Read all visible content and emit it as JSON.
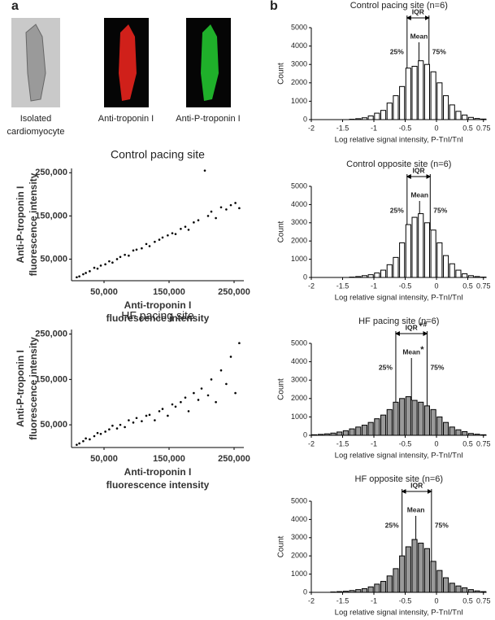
{
  "panel_labels": [
    "a",
    "b"
  ],
  "images": {
    "captions": [
      [
        "Isolated",
        "cardiomyocyte"
      ],
      [
        "Anti-troponin I"
      ],
      [
        "Anti-P-troponin I"
      ]
    ]
  },
  "chart_data": [
    {
      "type": "scatter",
      "title": "Control pacing site",
      "x_label": [
        "Anti-troponin I",
        "fluorescence intensity"
      ],
      "y_label": [
        "Anti-P-troponin I",
        "fluorescence intensity"
      ],
      "color": "#000000",
      "x": [
        8000,
        12000,
        18000,
        22000,
        28000,
        35000,
        40000,
        45000,
        52000,
        58000,
        63000,
        70000,
        75000,
        82000,
        88000,
        95000,
        100000,
        108000,
        115000,
        120000,
        128000,
        135000,
        140000,
        148000,
        155000,
        160000,
        168000,
        175000,
        180000,
        188000,
        195000,
        205000,
        210000,
        215000,
        222000,
        230000,
        238000,
        245000,
        252000,
        258000
      ],
      "values": [
        8000,
        10000,
        15000,
        18000,
        22000,
        30000,
        28000,
        35000,
        38000,
        45000,
        42000,
        50000,
        55000,
        60000,
        58000,
        70000,
        72000,
        75000,
        85000,
        80000,
        90000,
        95000,
        100000,
        105000,
        110000,
        108000,
        120000,
        125000,
        118000,
        135000,
        140000,
        255000,
        150000,
        160000,
        145000,
        170000,
        165000,
        175000,
        180000,
        168000
      ],
      "xlim": [
        0,
        265000
      ],
      "ylim": [
        0,
        260000
      ],
      "xticks": [
        {
          "value": 50000,
          "label": "50,000"
        },
        {
          "value": 150000,
          "label": "150,000"
        },
        {
          "value": 250000,
          "label": "250,000"
        }
      ],
      "yticks": [
        {
          "value": 50000,
          "label": "50,000"
        },
        {
          "value": 150000,
          "label": "150,000"
        },
        {
          "value": 250000,
          "label": "250,000"
        }
      ]
    },
    {
      "type": "scatter",
      "title": "HF pacing site",
      "x_label": [
        "Anti-troponin I",
        "fluorescence intensity"
      ],
      "y_label": [
        "Anti-P-troponin I",
        "fluorescence intensity"
      ],
      "color": "#000000",
      "x": [
        8000,
        12000,
        18000,
        22000,
        28000,
        35000,
        40000,
        45000,
        52000,
        58000,
        63000,
        70000,
        75000,
        82000,
        88000,
        95000,
        100000,
        108000,
        115000,
        120000,
        128000,
        135000,
        140000,
        148000,
        155000,
        160000,
        168000,
        175000,
        180000,
        188000,
        195000,
        200000,
        210000,
        215000,
        222000,
        230000,
        238000,
        245000,
        252000,
        258000
      ],
      "values": [
        6000,
        9000,
        14000,
        20000,
        18000,
        25000,
        32000,
        30000,
        35000,
        40000,
        48000,
        42000,
        50000,
        45000,
        60000,
        55000,
        65000,
        58000,
        70000,
        72000,
        60000,
        80000,
        85000,
        70000,
        95000,
        90000,
        100000,
        110000,
        80000,
        120000,
        105000,
        130000,
        115000,
        150000,
        100000,
        170000,
        140000,
        200000,
        120000,
        230000
      ],
      "xlim": [
        0,
        265000
      ],
      "ylim": [
        0,
        260000
      ],
      "xticks": [
        {
          "value": 50000,
          "label": "50,000"
        },
        {
          "value": 150000,
          "label": "150,000"
        },
        {
          "value": 250000,
          "label": "250,000"
        }
      ],
      "yticks": [
        {
          "value": 50000,
          "label": "50,000"
        },
        {
          "value": 150000,
          "label": "150,000"
        },
        {
          "value": 250000,
          "label": "250,000"
        }
      ]
    },
    {
      "type": "histogram",
      "title": "Control pacing site (n=6)",
      "x_label": "Log relative signal intensity, P-TnI/TnI",
      "y_label": "Count",
      "color": "#ffffff",
      "bins": [
        -2,
        -1.9,
        -1.8,
        -1.7,
        -1.6,
        -1.5,
        -1.4,
        -1.3,
        -1.2,
        -1.1,
        -1,
        -0.9,
        -0.8,
        -0.7,
        -0.6,
        -0.5,
        -0.4,
        -0.3,
        -0.2,
        -0.1,
        0,
        0.1,
        0.2,
        0.3,
        0.4,
        0.5,
        0.6,
        0.7,
        0.8
      ],
      "values": [
        0,
        0,
        0,
        0,
        0,
        0,
        20,
        50,
        100,
        200,
        350,
        500,
        900,
        1300,
        1800,
        2800,
        2900,
        3200,
        3000,
        2600,
        2000,
        1300,
        800,
        450,
        250,
        120,
        60,
        30
      ],
      "xlim": [
        -2,
        0.8
      ],
      "ylim": [
        0,
        5000
      ],
      "xticks": [
        -2,
        -1.5,
        -1,
        -0.5,
        0,
        0.5,
        0.75
      ],
      "yticks": [
        0,
        1000,
        2000,
        3000,
        4000,
        5000
      ],
      "iqr_label": "IQR",
      "markers": [
        {
          "label": "25%",
          "value": -0.47
        },
        {
          "label": "Mean",
          "value": -0.28
        },
        {
          "label": "75%",
          "value": -0.12
        }
      ]
    },
    {
      "type": "histogram",
      "title": "Control opposite site (n=6)",
      "x_label": "Log relative signal intensity, P-TnI/TnI",
      "y_label": "Count",
      "color": "#ffffff",
      "bins": [
        -2,
        -1.9,
        -1.8,
        -1.7,
        -1.6,
        -1.5,
        -1.4,
        -1.3,
        -1.2,
        -1.1,
        -1,
        -0.9,
        -0.8,
        -0.7,
        -0.6,
        -0.5,
        -0.4,
        -0.3,
        -0.2,
        -0.1,
        0,
        0.1,
        0.2,
        0.3,
        0.4,
        0.5,
        0.6,
        0.7,
        0.8
      ],
      "values": [
        0,
        0,
        0,
        0,
        0,
        0,
        20,
        50,
        100,
        150,
        250,
        400,
        700,
        1100,
        1900,
        2900,
        3300,
        3500,
        3000,
        2600,
        1900,
        1200,
        750,
        400,
        200,
        100,
        50,
        20
      ],
      "xlim": [
        -2,
        0.8
      ],
      "ylim": [
        0,
        5000
      ],
      "xticks": [
        -2,
        -1.5,
        -1,
        -0.5,
        0,
        0.5,
        0.75
      ],
      "yticks": [
        0,
        1000,
        2000,
        3000,
        4000,
        5000
      ],
      "iqr_label": "IQR",
      "markers": [
        {
          "label": "25%",
          "value": -0.47
        },
        {
          "label": "Mean",
          "value": -0.27
        },
        {
          "label": "75%",
          "value": -0.1
        }
      ]
    },
    {
      "type": "histogram",
      "title": "HF pacing site (n=6)",
      "x_label": "Log relative signal intensity, P-TnI/TnI",
      "y_label": "Count",
      "color": "#999999",
      "bins": [
        -2,
        -1.9,
        -1.8,
        -1.7,
        -1.6,
        -1.5,
        -1.4,
        -1.3,
        -1.2,
        -1.1,
        -1,
        -0.9,
        -0.8,
        -0.7,
        -0.6,
        -0.5,
        -0.4,
        -0.3,
        -0.2,
        -0.1,
        0,
        0.1,
        0.2,
        0.3,
        0.4,
        0.5,
        0.6,
        0.7,
        0.8
      ],
      "values": [
        30,
        50,
        80,
        120,
        180,
        250,
        350,
        450,
        550,
        700,
        900,
        1100,
        1400,
        1800,
        2000,
        2100,
        1900,
        1800,
        1600,
        1400,
        1000,
        700,
        450,
        300,
        200,
        100,
        60,
        30
      ],
      "xlim": [
        -2,
        0.8
      ],
      "ylim": [
        0,
        5000
      ],
      "xticks": [
        -2,
        -1.5,
        -1,
        -0.5,
        0,
        0.5,
        0.75
      ],
      "yticks": [
        0,
        1000,
        2000,
        3000,
        4000,
        5000
      ],
      "iqr_label": "IQR",
      "iqr_note": "+#",
      "mean_note": "*",
      "markers": [
        {
          "label": "25%",
          "value": -0.65
        },
        {
          "label": "Mean",
          "value": -0.4
        },
        {
          "label": "75%",
          "value": -0.15
        }
      ]
    },
    {
      "type": "histogram",
      "title": "HF opposite site (n=6)",
      "x_label": "Log relative signal intensity, P-TnI/TnI",
      "y_label": "Count",
      "color": "#999999",
      "bins": [
        -2,
        -1.9,
        -1.8,
        -1.7,
        -1.6,
        -1.5,
        -1.4,
        -1.3,
        -1.2,
        -1.1,
        -1,
        -0.9,
        -0.8,
        -0.7,
        -0.6,
        -0.5,
        -0.4,
        -0.3,
        -0.2,
        -0.1,
        0,
        0.1,
        0.2,
        0.3,
        0.4,
        0.5,
        0.6,
        0.7,
        0.8
      ],
      "values": [
        0,
        0,
        0,
        20,
        40,
        60,
        100,
        150,
        200,
        300,
        450,
        600,
        900,
        1300,
        2000,
        2500,
        2900,
        2700,
        2400,
        1700,
        1200,
        800,
        500,
        350,
        250,
        150,
        80,
        40
      ],
      "xlim": [
        -2,
        0.8
      ],
      "ylim": [
        0,
        5000
      ],
      "xticks": [
        -2,
        -1.5,
        -1,
        -0.5,
        0,
        0.5,
        0.75
      ],
      "yticks": [
        0,
        1000,
        2000,
        3000,
        4000,
        5000
      ],
      "iqr_label": "IQR",
      "markers": [
        {
          "label": "25%",
          "value": -0.55
        },
        {
          "label": "Mean",
          "value": -0.33
        },
        {
          "label": "75%",
          "value": -0.08
        }
      ]
    }
  ]
}
